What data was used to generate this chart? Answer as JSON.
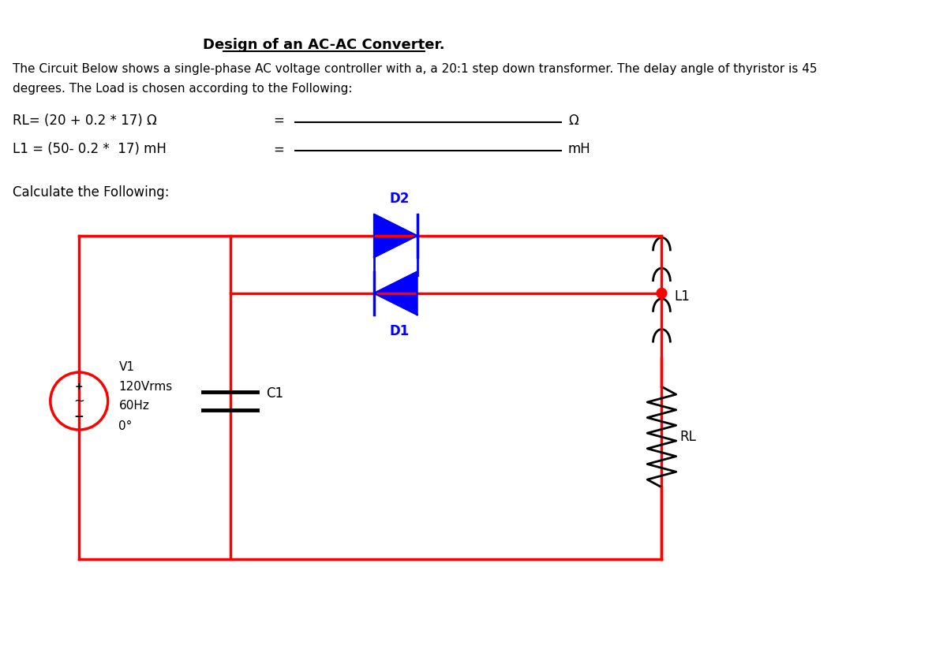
{
  "title": "Design of an AC-AC Converter.",
  "description_line1": "The Circuit Below shows a single-phase AC voltage controller with a, a 20:1 step down transformer. The delay angle of thyristor is 45",
  "description_line2": "degrees. The Load is chosen according to the Following:",
  "rl_label": "RL= (20 + 0.2 * 17) Ω",
  "l1_label": "L1 = (50- 0.2 *  17) mH",
  "calc_label": "Calculate the Following:",
  "eq_sign": "=",
  "omega_unit": "Ω",
  "mh_unit": "mH",
  "v1_label": "V1",
  "v1_detail1": "120Vrms",
  "v1_detail2": "60Hz",
  "v1_detail3": "0°",
  "c1_label": "C1",
  "l1_comp_label": "L1",
  "rl_comp_label": "RL",
  "d1_label": "D1",
  "d2_label": "D2",
  "circuit_color": "#ff0000",
  "component_color": "#0000ff",
  "text_color": "#000000",
  "background_color": "#ffffff"
}
